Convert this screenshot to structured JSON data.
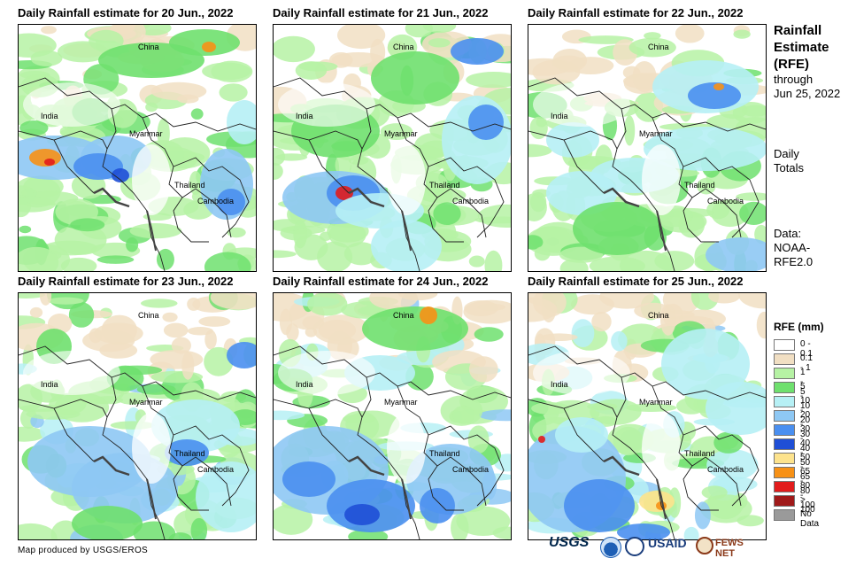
{
  "panels": [
    {
      "title": "Daily Rainfall estimate for 20 Jun., 2022"
    },
    {
      "title": "Daily Rainfall estimate for 21 Jun., 2022"
    },
    {
      "title": "Daily Rainfall estimate for 22 Jun., 2022"
    },
    {
      "title": "Daily Rainfall estimate for 23 Jun., 2022"
    },
    {
      "title": "Daily Rainfall estimate for 24 Jun., 2022"
    },
    {
      "title": "Daily Rainfall estimate for 25 Jun., 2022"
    }
  ],
  "map_labels": {
    "china": "China",
    "india": "India",
    "myanmar": "Myanmar",
    "thailand": "Thailand",
    "cambodia": "Cambodia"
  },
  "side": {
    "line1": "Rainfall",
    "line2": "Estimate",
    "line3": "(RFE)",
    "line4": "through",
    "line5": "Jun 25, 2022",
    "daily1": "Daily",
    "daily2": "Totals",
    "data1": "Data:",
    "data2": "NOAA-",
    "data3": "RFE2.0"
  },
  "legend": {
    "title": "RFE (mm)",
    "items": [
      {
        "label": "0 - 0.1",
        "color": "#ffffff"
      },
      {
        "label": "0.1 - 1",
        "color": "#f1dfc3"
      },
      {
        "label": "1 - 5",
        "color": "#b6f2a4"
      },
      {
        "label": "5 - 10",
        "color": "#6fe06e"
      },
      {
        "label": "10 - 20",
        "color": "#b6f0f5"
      },
      {
        "label": "20 - 30",
        "color": "#8ec8f4"
      },
      {
        "label": "30 - 40",
        "color": "#4a8ff0"
      },
      {
        "label": "40 - 50",
        "color": "#1f4fd6"
      },
      {
        "label": "50 - 65",
        "color": "#fde38d"
      },
      {
        "label": "65 - 80",
        "color": "#f79116"
      },
      {
        "label": "80 - 100",
        "color": "#e21c1c"
      },
      {
        "label": "> 100",
        "color": "#a01a1a"
      },
      {
        "label": "No Data",
        "color": "#9a9a9a"
      }
    ]
  },
  "footer": {
    "credit": "Map produced by USGS/EROS"
  },
  "logos": {
    "usgs": "USGS",
    "usaid": "USAID",
    "fewsnet": "FEWS NET"
  }
}
